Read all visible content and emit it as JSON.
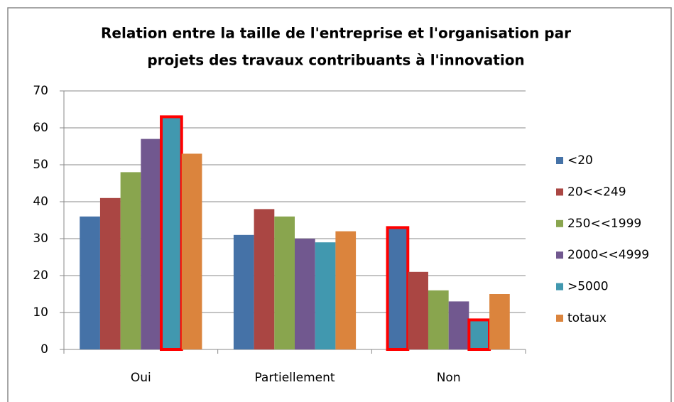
{
  "chart_data": {
    "type": "bar",
    "title": [
      "Relation entre la taille de l'entreprise et l'organisation par",
      "projets des travaux contribuants à l'innovation"
    ],
    "categories": [
      "Oui",
      "Partiellement",
      "Non"
    ],
    "series": [
      {
        "name": "<20",
        "color": "#4572a7",
        "values": [
          36,
          31,
          33
        ],
        "highlight": [
          false,
          false,
          true
        ]
      },
      {
        "name": "20<<249",
        "color": "#aa4643",
        "values": [
          41,
          38,
          21
        ],
        "highlight": [
          false,
          false,
          false
        ]
      },
      {
        "name": "250<<1999",
        "color": "#89a54e",
        "values": [
          48,
          36,
          16
        ],
        "highlight": [
          false,
          false,
          false
        ]
      },
      {
        "name": "2000<<4999",
        "color": "#71588f",
        "values": [
          57,
          30,
          13
        ],
        "highlight": [
          false,
          false,
          false
        ]
      },
      {
        "name": ">5000",
        "color": "#4198af",
        "values": [
          63,
          29,
          8
        ],
        "highlight": [
          true,
          false,
          true
        ]
      },
      {
        "name": "totaux",
        "color": "#db843d",
        "values": [
          53,
          32,
          15
        ],
        "highlight": [
          false,
          false,
          false
        ]
      }
    ],
    "highlight_color": "#ff0000",
    "ylim": [
      0,
      70
    ],
    "yticks": [
      0,
      10,
      20,
      30,
      40,
      50,
      60,
      70
    ],
    "grid": true,
    "legend": "right"
  }
}
